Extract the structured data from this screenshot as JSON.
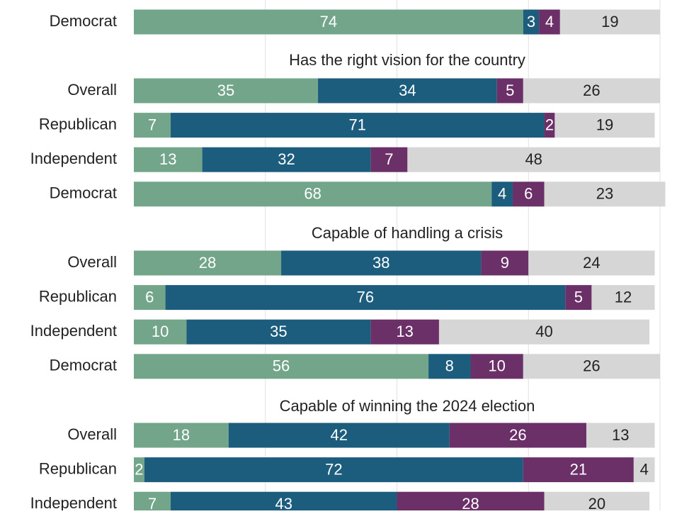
{
  "colors": {
    "seg1": "#72a58a",
    "seg2": "#1c5d7e",
    "seg3": "#6b3068",
    "seg4": "#d6d6d6",
    "gridline": "#e1e1e1",
    "label_dark": "#222222"
  },
  "chart_data": {
    "type": "bar",
    "orientation": "horizontal",
    "stacked": true,
    "xlim": [
      0,
      100
    ],
    "grid": true,
    "series_colors": [
      "#72a58a",
      "#1c5d7e",
      "#6b3068",
      "#d6d6d6"
    ],
    "panels": [
      {
        "title": "",
        "rows": [
          {
            "label": "Democrat",
            "values": [
              74,
              3,
              4,
              19
            ]
          }
        ]
      },
      {
        "title": "Has the right vision for the country",
        "rows": [
          {
            "label": "Overall",
            "values": [
              35,
              34,
              5,
              26
            ]
          },
          {
            "label": "Republican",
            "values": [
              7,
              71,
              2,
              19
            ]
          },
          {
            "label": "Independent",
            "values": [
              13,
              32,
              7,
              48
            ]
          },
          {
            "label": "Democrat",
            "values": [
              68,
              4,
              6,
              23
            ]
          }
        ]
      },
      {
        "title": "Capable of handling a crisis",
        "rows": [
          {
            "label": "Overall",
            "values": [
              28,
              38,
              9,
              24
            ]
          },
          {
            "label": "Republican",
            "values": [
              6,
              76,
              5,
              12
            ]
          },
          {
            "label": "Independent",
            "values": [
              10,
              35,
              13,
              40
            ]
          },
          {
            "label": "Democrat",
            "values": [
              56,
              8,
              10,
              26
            ]
          }
        ]
      },
      {
        "title": "Capable of winning the 2024 election",
        "rows": [
          {
            "label": "Overall",
            "values": [
              18,
              42,
              26,
              13
            ]
          },
          {
            "label": "Republican",
            "values": [
              2,
              72,
              21,
              4
            ]
          },
          {
            "label": "Independent",
            "values": [
              7,
              43,
              28,
              20
            ]
          }
        ]
      }
    ]
  }
}
